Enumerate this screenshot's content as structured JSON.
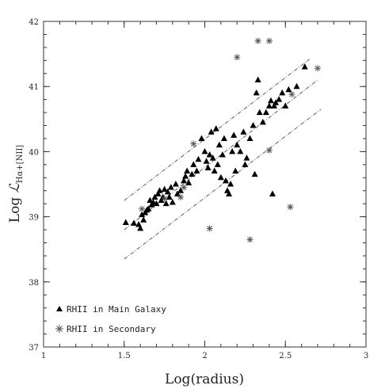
{
  "chart_data": {
    "type": "scatter",
    "title": "",
    "xlabel": "Log(radius)",
    "ylabel_main": "Log ",
    "ylabel_script": "ℒ",
    "ylabel_sub": "Hα+[NII]",
    "xlim": [
      1,
      3
    ],
    "ylim": [
      37,
      42
    ],
    "x_ticks": [
      {
        "value": 1,
        "label": "1"
      },
      {
        "value": 1.5,
        "label": "1.5"
      },
      {
        "value": 2,
        "label": "2"
      },
      {
        "value": 2.5,
        "label": "2.5"
      },
      {
        "value": 3,
        "label": "3"
      }
    ],
    "y_ticks": [
      {
        "value": 37,
        "label": "37"
      },
      {
        "value": 38,
        "label": "38"
      },
      {
        "value": 39,
        "label": "39"
      },
      {
        "value": 40,
        "label": "40"
      },
      {
        "value": 41,
        "label": "41"
      },
      {
        "value": 42,
        "label": "42"
      }
    ],
    "grid": false,
    "legend_position": "bottom-left",
    "series": [
      {
        "name": "RHII in Main Galaxy",
        "marker": "triangle",
        "color": "#000000",
        "points": [
          [
            1.51,
            38.91
          ],
          [
            1.56,
            38.9
          ],
          [
            1.59,
            38.88
          ],
          [
            1.6,
            38.82
          ],
          [
            1.61,
            39.03
          ],
          [
            1.62,
            38.95
          ],
          [
            1.63,
            39.06
          ],
          [
            1.64,
            39.1
          ],
          [
            1.65,
            39.12
          ],
          [
            1.66,
            39.25
          ],
          [
            1.67,
            39.18
          ],
          [
            1.68,
            39.22
          ],
          [
            1.69,
            39.3
          ],
          [
            1.7,
            39.2
          ],
          [
            1.71,
            39.35
          ],
          [
            1.72,
            39.4
          ],
          [
            1.73,
            39.25
          ],
          [
            1.74,
            39.3
          ],
          [
            1.75,
            39.42
          ],
          [
            1.76,
            39.2
          ],
          [
            1.77,
            39.38
          ],
          [
            1.78,
            39.3
          ],
          [
            1.79,
            39.45
          ],
          [
            1.8,
            39.22
          ],
          [
            1.82,
            39.5
          ],
          [
            1.83,
            39.35
          ],
          [
            1.85,
            39.4
          ],
          [
            1.87,
            39.55
          ],
          [
            1.88,
            39.62
          ],
          [
            1.89,
            39.7
          ],
          [
            1.9,
            39.52
          ],
          [
            1.92,
            39.65
          ],
          [
            1.93,
            39.8
          ],
          [
            1.95,
            39.7
          ],
          [
            1.96,
            39.88
          ],
          [
            1.98,
            40.2
          ],
          [
            2.0,
            40.0
          ],
          [
            2.01,
            39.85
          ],
          [
            2.02,
            39.75
          ],
          [
            2.03,
            39.95
          ],
          [
            2.04,
            40.3
          ],
          [
            2.05,
            39.9
          ],
          [
            2.06,
            39.7
          ],
          [
            2.07,
            40.35
          ],
          [
            2.08,
            39.8
          ],
          [
            2.09,
            40.1
          ],
          [
            2.1,
            39.6
          ],
          [
            2.11,
            39.95
          ],
          [
            2.12,
            40.2
          ],
          [
            2.13,
            39.55
          ],
          [
            2.14,
            39.4
          ],
          [
            2.15,
            39.35
          ],
          [
            2.16,
            39.5
          ],
          [
            2.17,
            40.0
          ],
          [
            2.18,
            40.25
          ],
          [
            2.19,
            39.7
          ],
          [
            2.2,
            40.1
          ],
          [
            2.22,
            40.0
          ],
          [
            2.24,
            40.3
          ],
          [
            2.25,
            39.8
          ],
          [
            2.26,
            39.9
          ],
          [
            2.28,
            40.2
          ],
          [
            2.3,
            40.4
          ],
          [
            2.31,
            39.65
          ],
          [
            2.32,
            40.9
          ],
          [
            2.33,
            41.1
          ],
          [
            2.34,
            40.6
          ],
          [
            2.36,
            40.45
          ],
          [
            2.38,
            40.6
          ],
          [
            2.4,
            40.7
          ],
          [
            2.41,
            40.78
          ],
          [
            2.42,
            39.35
          ],
          [
            2.43,
            40.7
          ],
          [
            2.44,
            40.75
          ],
          [
            2.46,
            40.8
          ],
          [
            2.48,
            40.9
          ],
          [
            2.5,
            40.7
          ],
          [
            2.52,
            40.95
          ],
          [
            2.57,
            41.0
          ],
          [
            2.62,
            41.3
          ]
        ]
      },
      {
        "name": "RHII in Secondary",
        "marker": "asterisk",
        "color": "#555555",
        "points": [
          [
            1.61,
            39.12
          ],
          [
            1.75,
            39.28
          ],
          [
            1.85,
            39.3
          ],
          [
            1.87,
            39.45
          ],
          [
            1.93,
            40.12
          ],
          [
            2.03,
            38.82
          ],
          [
            2.2,
            41.45
          ],
          [
            2.28,
            38.65
          ],
          [
            2.33,
            41.7
          ],
          [
            2.4,
            41.7
          ],
          [
            2.4,
            40.02
          ],
          [
            2.53,
            39.15
          ],
          [
            2.54,
            40.88
          ],
          [
            2.7,
            41.28
          ]
        ]
      }
    ],
    "fit_lines": [
      {
        "x": [
          1.5,
          2.65
        ],
        "y": [
          39.25,
          41.42
        ]
      },
      {
        "x": [
          1.5,
          2.7
        ],
        "y": [
          38.8,
          41.1
        ]
      },
      {
        "x": [
          1.5,
          2.72
        ],
        "y": [
          38.35,
          40.65
        ]
      }
    ]
  }
}
